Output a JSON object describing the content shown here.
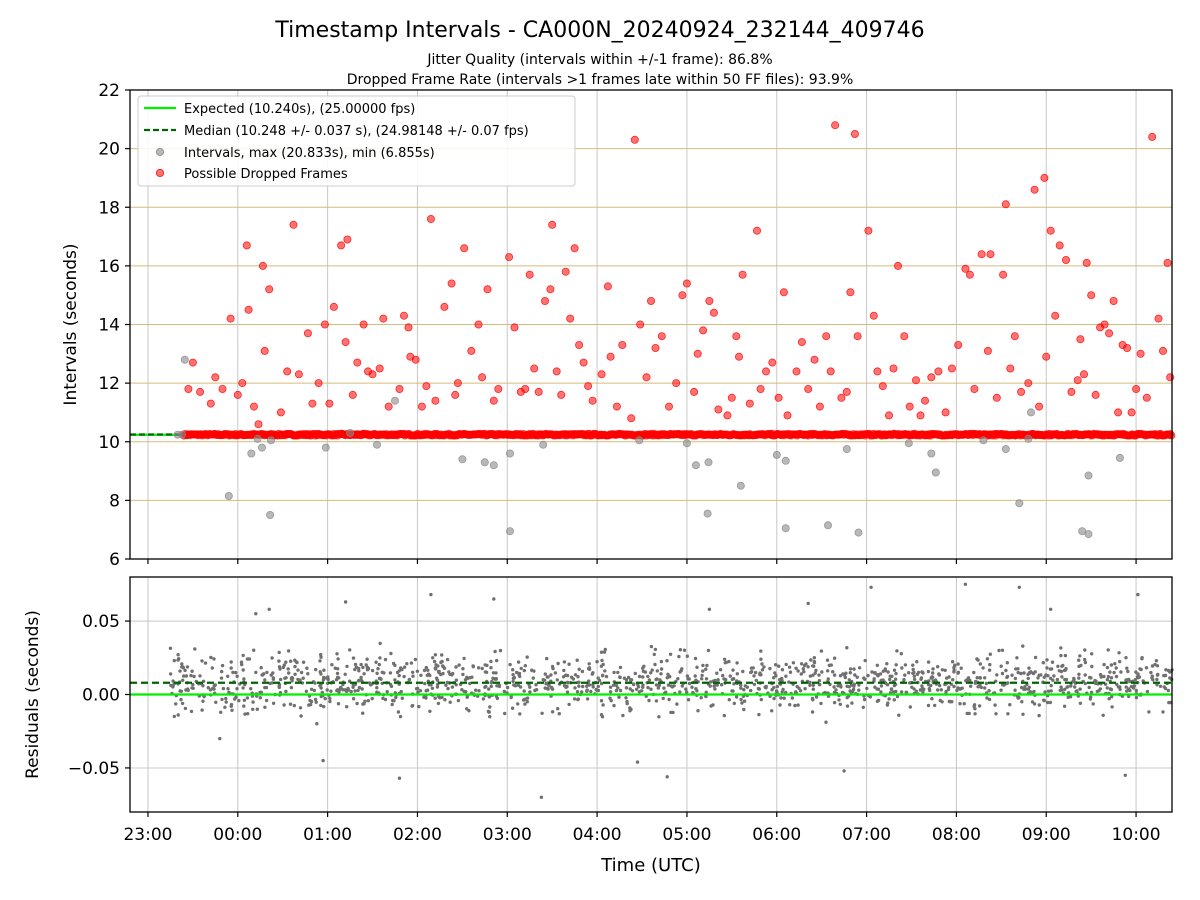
{
  "figure": {
    "title": "Timestamp Intervals - CA000N_20240924_232144_409746",
    "subtitle_1": "Jitter Quality (intervals within +/-1 frame): 86.8%",
    "subtitle_2": "Dropped Frame Rate (intervals >1 frames late within 50 FF files): 93.9%"
  },
  "colors": {
    "expected": "#00ee00",
    "median": "#006400",
    "intervals": "#888888",
    "dropped": "#ff0000",
    "hgrid": "#d4bc7a",
    "vgrid": "#c8c8c8",
    "residual_points": "#707070"
  },
  "chart_data": [
    {
      "type": "scatter",
      "panel": "intervals",
      "xlabel": "",
      "ylabel": "Intervals (seconds)",
      "ylim": [
        6,
        22
      ],
      "yticks": [
        6,
        8,
        10,
        12,
        14,
        16,
        18,
        20,
        22
      ],
      "xlim_hours": [
        -1.2,
        10.4
      ],
      "xticks_hours": [
        -1,
        0,
        1,
        2,
        3,
        4,
        5,
        6,
        7,
        8,
        9,
        10
      ],
      "grid": "horizontal at y ticks, vertical at x ticks",
      "legend_position": "upper-left",
      "legend": [
        "Expected (10.240s), (25.00000 fps)",
        "Median (10.248 +/- 0.037 s), (24.98148 +/- 0.07 fps)",
        "Intervals, max (20.833s), min (6.855s)",
        "Possible Dropped Frames"
      ],
      "expected_interval": 10.24,
      "median_interval": 10.248,
      "baseline_series": {
        "name": "Possible Dropped Frames",
        "x_range_hours": [
          -0.6,
          10.4
        ],
        "y": 10.24
      },
      "intervals_points": [
        [
          -0.67,
          10.24
        ],
        [
          -0.62,
          10.24
        ],
        [
          -0.59,
          12.8
        ],
        [
          -0.1,
          8.15
        ],
        [
          0.15,
          9.6
        ],
        [
          0.22,
          10.1
        ],
        [
          0.27,
          9.8
        ],
        [
          0.36,
          7.5
        ],
        [
          0.37,
          10.05
        ],
        [
          0.98,
          9.8
        ],
        [
          1.25,
          10.3
        ],
        [
          1.55,
          9.9
        ],
        [
          1.75,
          11.4
        ],
        [
          2.5,
          9.4
        ],
        [
          2.75,
          9.3
        ],
        [
          2.85,
          9.2
        ],
        [
          3.03,
          6.95
        ],
        [
          3.03,
          9.6
        ],
        [
          3.4,
          9.9
        ],
        [
          4.47,
          10.05
        ],
        [
          5.0,
          9.95
        ],
        [
          5.1,
          9.2
        ],
        [
          5.24,
          9.3
        ],
        [
          5.23,
          7.55
        ],
        [
          5.6,
          8.5
        ],
        [
          6.0,
          9.55
        ],
        [
          6.1,
          9.35
        ],
        [
          6.1,
          7.05
        ],
        [
          6.57,
          7.15
        ],
        [
          6.78,
          9.75
        ],
        [
          6.91,
          6.9
        ],
        [
          7.47,
          9.95
        ],
        [
          7.72,
          9.6
        ],
        [
          7.77,
          8.95
        ],
        [
          8.3,
          10.05
        ],
        [
          8.55,
          9.75
        ],
        [
          8.7,
          7.9
        ],
        [
          8.8,
          10.1
        ],
        [
          8.83,
          11.0
        ],
        [
          9.4,
          6.95
        ],
        [
          9.47,
          6.85
        ],
        [
          9.47,
          8.85
        ],
        [
          9.82,
          9.45
        ]
      ],
      "dropped_points": [
        [
          -0.55,
          11.8
        ],
        [
          -0.5,
          12.7
        ],
        [
          -0.42,
          11.7
        ],
        [
          -0.3,
          11.3
        ],
        [
          -0.25,
          12.2
        ],
        [
          -0.17,
          11.8
        ],
        [
          -0.08,
          14.2
        ],
        [
          0.0,
          11.6
        ],
        [
          0.05,
          12.0
        ],
        [
          0.1,
          16.7
        ],
        [
          0.12,
          14.5
        ],
        [
          0.18,
          11.2
        ],
        [
          0.23,
          10.6
        ],
        [
          0.28,
          16.0
        ],
        [
          0.3,
          13.1
        ],
        [
          0.35,
          15.2
        ],
        [
          0.48,
          11.0
        ],
        [
          0.55,
          12.4
        ],
        [
          0.62,
          17.4
        ],
        [
          0.68,
          12.3
        ],
        [
          0.78,
          13.7
        ],
        [
          0.83,
          11.3
        ],
        [
          0.9,
          12.0
        ],
        [
          0.97,
          14.0
        ],
        [
          1.02,
          11.3
        ],
        [
          1.07,
          14.6
        ],
        [
          1.15,
          16.7
        ],
        [
          1.2,
          13.4
        ],
        [
          1.22,
          16.9
        ],
        [
          1.28,
          11.6
        ],
        [
          1.33,
          12.7
        ],
        [
          1.4,
          14.0
        ],
        [
          1.45,
          12.4
        ],
        [
          1.5,
          12.3
        ],
        [
          1.58,
          12.5
        ],
        [
          1.62,
          14.2
        ],
        [
          1.68,
          11.2
        ],
        [
          1.8,
          11.8
        ],
        [
          1.85,
          14.3
        ],
        [
          1.9,
          13.9
        ],
        [
          1.92,
          12.9
        ],
        [
          1.98,
          12.8
        ],
        [
          2.05,
          11.2
        ],
        [
          2.1,
          11.9
        ],
        [
          2.15,
          17.6
        ],
        [
          2.2,
          11.4
        ],
        [
          2.3,
          14.6
        ],
        [
          2.38,
          15.4
        ],
        [
          2.42,
          11.6
        ],
        [
          2.45,
          12.0
        ],
        [
          2.52,
          16.6
        ],
        [
          2.6,
          13.1
        ],
        [
          2.68,
          14.0
        ],
        [
          2.72,
          12.2
        ],
        [
          2.78,
          15.2
        ],
        [
          2.85,
          11.4
        ],
        [
          2.9,
          11.8
        ],
        [
          3.02,
          16.3
        ],
        [
          3.08,
          13.9
        ],
        [
          3.15,
          11.7
        ],
        [
          3.2,
          11.8
        ],
        [
          3.25,
          15.7
        ],
        [
          3.3,
          12.5
        ],
        [
          3.35,
          11.7
        ],
        [
          3.42,
          14.8
        ],
        [
          3.48,
          15.2
        ],
        [
          3.5,
          17.4
        ],
        [
          3.55,
          12.4
        ],
        [
          3.6,
          11.6
        ],
        [
          3.65,
          15.8
        ],
        [
          3.7,
          14.2
        ],
        [
          3.75,
          16.6
        ],
        [
          3.8,
          13.3
        ],
        [
          3.85,
          12.7
        ],
        [
          3.9,
          11.9
        ],
        [
          3.95,
          11.4
        ],
        [
          4.05,
          12.3
        ],
        [
          4.12,
          15.3
        ],
        [
          4.15,
          12.9
        ],
        [
          4.22,
          11.2
        ],
        [
          4.28,
          13.3
        ],
        [
          4.38,
          10.8
        ],
        [
          4.42,
          20.3
        ],
        [
          4.48,
          14.0
        ],
        [
          4.55,
          12.2
        ],
        [
          4.6,
          14.8
        ],
        [
          4.65,
          13.2
        ],
        [
          4.72,
          13.6
        ],
        [
          4.8,
          11.2
        ],
        [
          4.88,
          12.0
        ],
        [
          4.95,
          15.0
        ],
        [
          5.0,
          15.4
        ],
        [
          5.08,
          11.7
        ],
        [
          5.12,
          13.0
        ],
        [
          5.18,
          13.8
        ],
        [
          5.25,
          14.8
        ],
        [
          5.3,
          14.4
        ],
        [
          5.35,
          11.1
        ],
        [
          5.45,
          10.9
        ],
        [
          5.5,
          11.5
        ],
        [
          5.55,
          13.6
        ],
        [
          5.58,
          12.9
        ],
        [
          5.62,
          15.7
        ],
        [
          5.7,
          11.3
        ],
        [
          5.78,
          17.2
        ],
        [
          5.82,
          11.8
        ],
        [
          5.88,
          12.4
        ],
        [
          5.95,
          12.7
        ],
        [
          6.02,
          11.5
        ],
        [
          6.08,
          15.1
        ],
        [
          6.12,
          10.9
        ],
        [
          6.22,
          12.4
        ],
        [
          6.28,
          13.4
        ],
        [
          6.35,
          11.8
        ],
        [
          6.42,
          12.8
        ],
        [
          6.48,
          11.2
        ],
        [
          6.55,
          13.6
        ],
        [
          6.6,
          12.4
        ],
        [
          6.65,
          20.8
        ],
        [
          6.72,
          11.5
        ],
        [
          6.78,
          11.7
        ],
        [
          6.82,
          15.1
        ],
        [
          6.87,
          20.5
        ],
        [
          6.9,
          13.6
        ],
        [
          7.02,
          17.2
        ],
        [
          7.08,
          14.3
        ],
        [
          7.12,
          12.4
        ],
        [
          7.18,
          11.9
        ],
        [
          7.25,
          10.9
        ],
        [
          7.3,
          12.5
        ],
        [
          7.35,
          16.0
        ],
        [
          7.42,
          13.6
        ],
        [
          7.48,
          11.2
        ],
        [
          7.55,
          12.1
        ],
        [
          7.6,
          10.9
        ],
        [
          7.65,
          11.4
        ],
        [
          7.72,
          12.2
        ],
        [
          7.8,
          12.4
        ],
        [
          7.88,
          11.0
        ],
        [
          7.95,
          12.5
        ],
        [
          8.02,
          13.3
        ],
        [
          8.1,
          15.9
        ],
        [
          8.15,
          15.7
        ],
        [
          8.2,
          11.8
        ],
        [
          8.28,
          16.4
        ],
        [
          8.35,
          13.1
        ],
        [
          8.38,
          16.4
        ],
        [
          8.45,
          11.5
        ],
        [
          8.52,
          15.7
        ],
        [
          8.55,
          18.1
        ],
        [
          8.6,
          12.5
        ],
        [
          8.65,
          13.6
        ],
        [
          8.72,
          11.7
        ],
        [
          8.8,
          12.0
        ],
        [
          8.87,
          18.6
        ],
        [
          8.92,
          11.2
        ],
        [
          8.98,
          19.0
        ],
        [
          9.0,
          12.9
        ],
        [
          9.05,
          17.2
        ],
        [
          9.1,
          14.3
        ],
        [
          9.15,
          16.7
        ],
        [
          9.22,
          16.2
        ],
        [
          9.28,
          11.7
        ],
        [
          9.35,
          12.1
        ],
        [
          9.38,
          13.5
        ],
        [
          9.42,
          12.3
        ],
        [
          9.45,
          16.1
        ],
        [
          9.5,
          15.0
        ],
        [
          9.55,
          11.6
        ],
        [
          9.6,
          13.9
        ],
        [
          9.65,
          14.0
        ],
        [
          9.7,
          13.7
        ],
        [
          9.75,
          14.8
        ],
        [
          9.8,
          11.0
        ],
        [
          9.85,
          13.3
        ],
        [
          9.9,
          13.2
        ],
        [
          9.95,
          11.0
        ],
        [
          10.0,
          11.8
        ],
        [
          10.05,
          13.0
        ],
        [
          10.12,
          11.5
        ],
        [
          10.18,
          20.4
        ],
        [
          10.25,
          14.2
        ],
        [
          10.3,
          13.1
        ],
        [
          10.35,
          16.1
        ],
        [
          10.38,
          12.2
        ]
      ]
    },
    {
      "type": "scatter",
      "panel": "residuals",
      "xlabel": "Time (UTC)",
      "ylabel": "Residuals (seconds)",
      "ylim": [
        -0.08,
        0.08
      ],
      "yticks": [
        -0.05,
        0.0,
        0.05
      ],
      "yticklabels": [
        "−0.05",
        "0.00",
        "0.05"
      ],
      "xlim_hours": [
        -1.2,
        10.4
      ],
      "xticks_hours": [
        -1,
        0,
        1,
        2,
        3,
        4,
        5,
        6,
        7,
        8,
        9,
        10
      ],
      "xticklabels": [
        "23:00",
        "00:00",
        "01:00",
        "02:00",
        "03:00",
        "04:00",
        "05:00",
        "06:00",
        "07:00",
        "08:00",
        "09:00",
        "10:00"
      ],
      "grid": "both",
      "expected_residual": 0.0,
      "median_residual": 0.008,
      "residual_x_range_hours": [
        -0.75,
        10.4
      ],
      "residual_typical_spread": 0.015,
      "residual_extremes": [
        [
          -0.2,
          -0.03
        ],
        [
          0.2,
          0.055
        ],
        [
          0.35,
          0.058
        ],
        [
          1.2,
          0.063
        ],
        [
          1.8,
          -0.057
        ],
        [
          2.15,
          0.068
        ],
        [
          3.38,
          -0.07
        ],
        [
          4.45,
          -0.046
        ],
        [
          4.78,
          -0.056
        ],
        [
          6.35,
          0.062
        ],
        [
          7.05,
          0.073
        ],
        [
          8.1,
          0.075
        ],
        [
          8.7,
          0.073
        ],
        [
          9.05,
          0.058
        ],
        [
          9.88,
          -0.055
        ],
        [
          10.02,
          0.068
        ],
        [
          6.75,
          -0.052
        ],
        [
          2.85,
          0.065
        ],
        [
          5.25,
          0.058
        ],
        [
          0.95,
          -0.045
        ]
      ]
    }
  ]
}
